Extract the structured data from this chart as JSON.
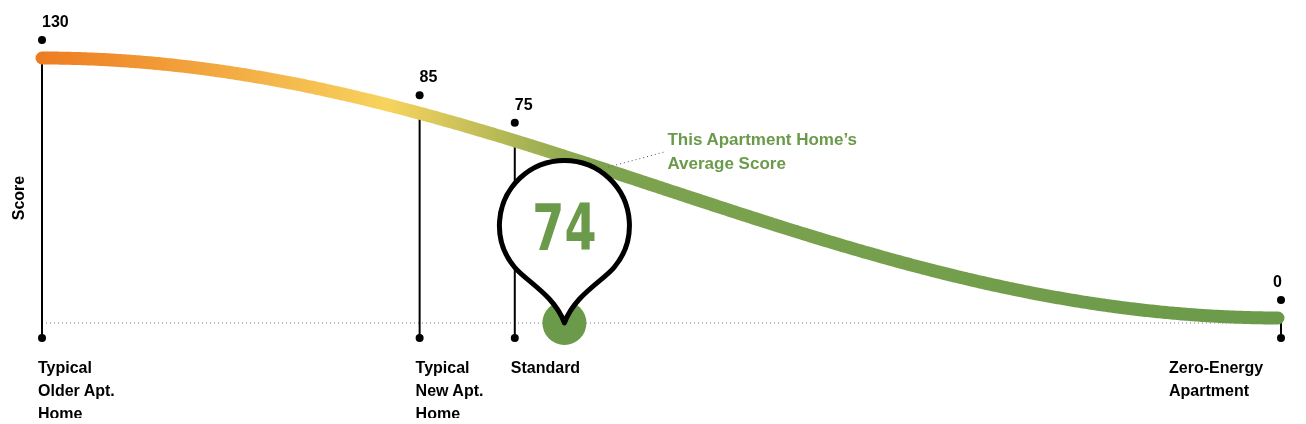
{
  "chart_data": {
    "type": "other",
    "ylabel": "Score",
    "categories": [
      "Typical Older Apt. Home",
      "Typical New Apt. Home",
      "Standard",
      "Zero-Energy Apartment"
    ],
    "values": [
      130,
      85,
      75,
      0
    ],
    "data_labels": true,
    "annotations": [
      "74",
      "This Apartment Home’s Average Score"
    ]
  }
}
